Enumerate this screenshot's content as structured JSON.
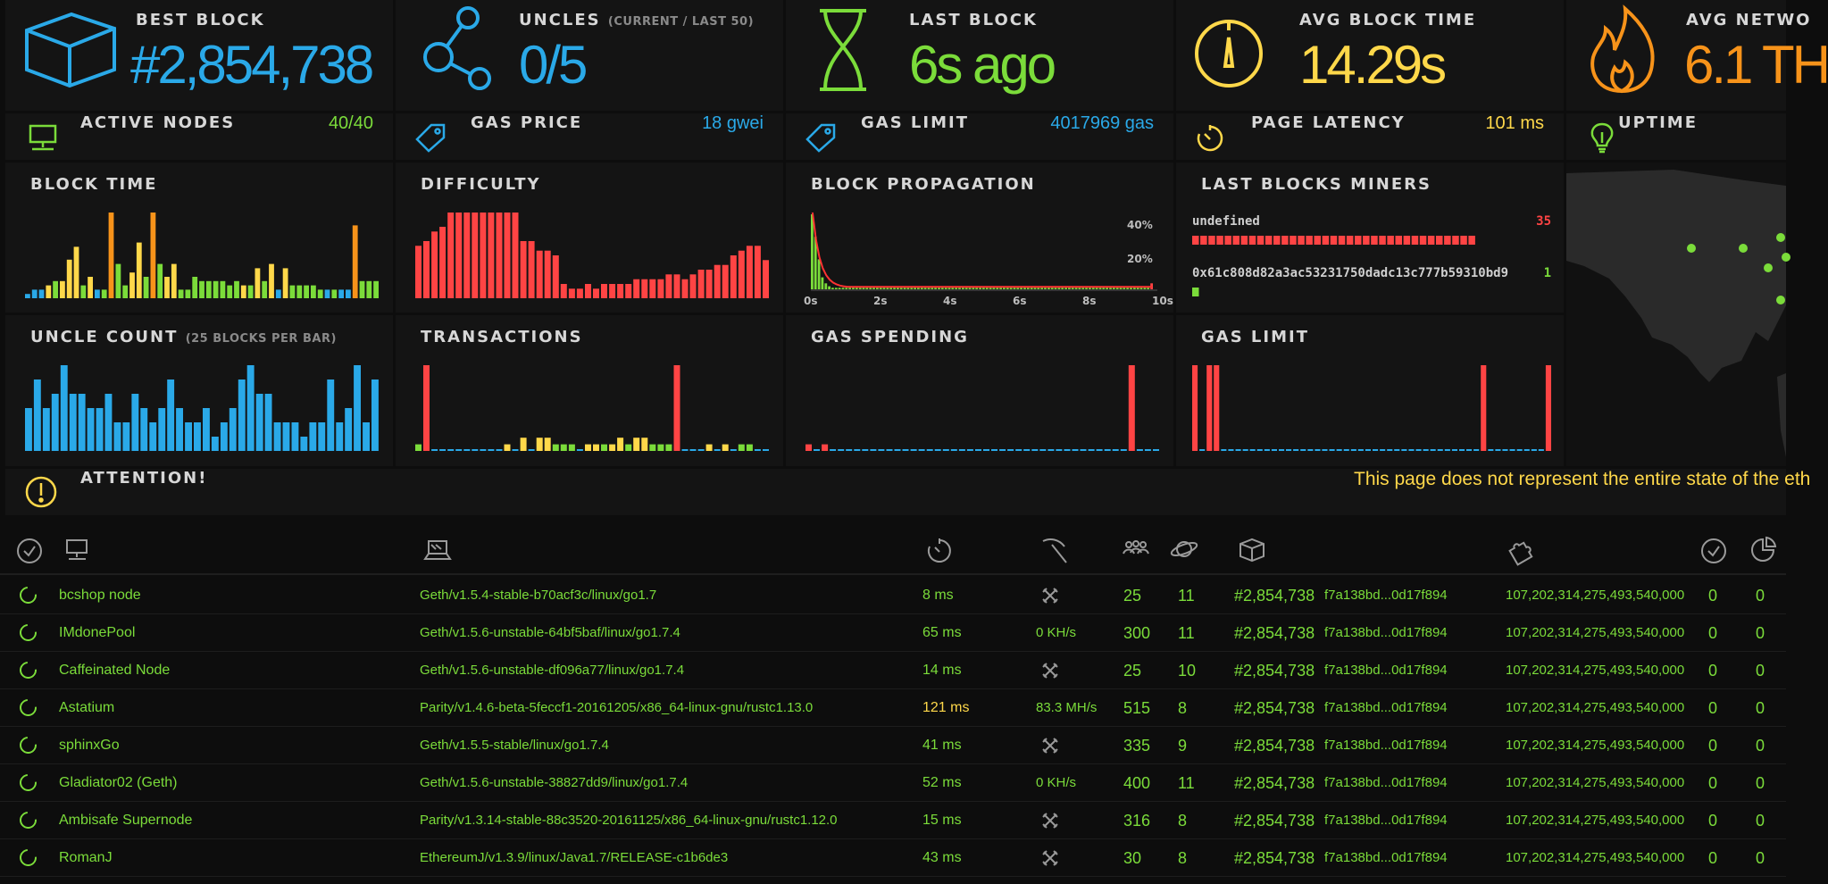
{
  "stats": {
    "best_block": {
      "label": "BEST BLOCK",
      "value": "#2,854,738",
      "icon": "cube-icon",
      "color": "#2aa9e8"
    },
    "uncles": {
      "label": "UNCLES",
      "sublabel": "(CURRENT / LAST 50)",
      "value": "0/5",
      "icon": "uncles-icon",
      "color": "#2aa9e8"
    },
    "last_block": {
      "label": "LAST BLOCK",
      "value": "6s ago",
      "icon": "hourglass-icon",
      "color": "#7bdc3a"
    },
    "avg_block_time": {
      "label": "AVG BLOCK TIME",
      "value": "14.29s",
      "icon": "gauge-icon",
      "color": "#ffd84a"
    },
    "avg_network": {
      "label": "AVG NETWO",
      "value": "6.1 TH",
      "icon": "flame-icon",
      "color": "#f7931a"
    }
  },
  "substats": {
    "active_nodes": {
      "label": "ACTIVE NODES",
      "value": "40/40",
      "icon": "monitor-icon"
    },
    "gas_price": {
      "label": "GAS PRICE",
      "value": "18 gwei",
      "icon": "tag-icon"
    },
    "gas_limit": {
      "label": "GAS LIMIT",
      "value": "4017969 gas",
      "icon": "tag-icon"
    },
    "page_latency": {
      "label": "PAGE LATENCY",
      "value": "101 ms",
      "icon": "timer-icon"
    },
    "uptime": {
      "label": "UPTIME",
      "icon": "bulb-icon"
    }
  },
  "charts": {
    "block_time": {
      "title": "BLOCK TIME",
      "values": [
        1,
        2,
        2,
        3,
        4,
        4,
        9,
        12,
        3,
        5,
        2,
        2,
        20,
        8,
        3,
        6,
        13,
        5,
        20,
        8,
        5,
        8,
        2,
        2,
        5,
        4,
        4,
        4,
        4,
        3,
        4,
        3,
        3,
        7,
        4,
        8,
        2,
        7,
        3,
        3,
        3,
        3,
        2,
        2,
        2,
        2,
        2,
        17,
        4,
        4,
        4
      ],
      "colors": [
        "#2aa9e8",
        "#2aa9e8",
        "#2aa9e8",
        "#ffd84a",
        "#7bdc3a",
        "#ffd84a",
        "#ffd84a",
        "#ffd84a",
        "#7bdc3a",
        "#ffd84a",
        "#2aa9e8",
        "#7bdc3a",
        "#f7931a",
        "#7bdc3a",
        "#7bdc3a",
        "#ffd84a",
        "#ffd84a",
        "#7bdc3a",
        "#f7931a",
        "#7bdc3a",
        "#ffd84a",
        "#ffd84a",
        "#7bdc3a",
        "#7bdc3a",
        "#7bdc3a",
        "#7bdc3a",
        "#7bdc3a",
        "#7bdc3a",
        "#7bdc3a",
        "#7bdc3a",
        "#7bdc3a",
        "#ffd84a",
        "#7bdc3a",
        "#ffd84a",
        "#7bdc3a",
        "#ffd84a",
        "#2aa9e8",
        "#ffd84a",
        "#7bdc3a",
        "#7bdc3a",
        "#7bdc3a",
        "#7bdc3a",
        "#7bdc3a",
        "#2aa9e8",
        "#7bdc3a",
        "#2aa9e8",
        "#2aa9e8",
        "#f7931a",
        "#7bdc3a",
        "#7bdc3a",
        "#7bdc3a"
      ]
    },
    "difficulty": {
      "title": "DIFFICULTY",
      "values": [
        11,
        12,
        14,
        15,
        18,
        18,
        18,
        18,
        18,
        18,
        18,
        18,
        18,
        12,
        12,
        10,
        10,
        9,
        3,
        2,
        2,
        3,
        2,
        3,
        3,
        3,
        3,
        4,
        4,
        4,
        4,
        5,
        5,
        4,
        5,
        6,
        6,
        7,
        7,
        9,
        10,
        11,
        11,
        8
      ]
    },
    "block_propagation": {
      "title": "BLOCK PROPAGATION",
      "y_ticks": [
        "40%",
        "20%"
      ],
      "x_ticks": [
        "0s",
        "2s",
        "4s",
        "6s",
        "8s",
        "10s"
      ],
      "bars": [
        50,
        35,
        20,
        8,
        4,
        2,
        1,
        1,
        1,
        1,
        1,
        1,
        1,
        1,
        1,
        1,
        1,
        1,
        1,
        1,
        1,
        1,
        1,
        1,
        1,
        1,
        1,
        1,
        1,
        1,
        1,
        1,
        1,
        1,
        1,
        1,
        1,
        1,
        1,
        1,
        1,
        1,
        1,
        1,
        1,
        1,
        1,
        1,
        1,
        1,
        1,
        1,
        1,
        1,
        1,
        1,
        1,
        1,
        1,
        1,
        1,
        1,
        1,
        1,
        1,
        1,
        1,
        1,
        1,
        1,
        1,
        1,
        1,
        1,
        1,
        1,
        1,
        1,
        1,
        1,
        1,
        1,
        1,
        1,
        1,
        1,
        1,
        1,
        1,
        1,
        1,
        1,
        1,
        1,
        1,
        1,
        1,
        1,
        1,
        4
      ]
    },
    "last_blocks_miners": {
      "title": "LAST BLOCKS MINERS",
      "miners": [
        {
          "name": "undefined",
          "count": "35",
          "color": "#ff4444"
        },
        {
          "name": "0x61c808d82a3ac53231750dadc13c777b59310bd9",
          "count": "1",
          "color": "#7bdc3a"
        }
      ]
    },
    "uncle_count": {
      "title": "UNCLE COUNT",
      "sublabel": "(25 BLOCKS PER BAR)",
      "values": [
        3,
        5,
        3,
        4,
        6,
        4,
        4,
        3,
        3,
        4,
        2,
        2,
        4,
        3,
        2,
        3,
        5,
        3,
        2,
        2,
        3,
        1,
        2,
        3,
        5,
        6,
        4,
        4,
        2,
        2,
        2,
        1,
        2,
        2,
        5,
        2,
        3,
        6,
        2,
        5
      ]
    },
    "transactions": {
      "title": "TRANSACTIONS",
      "values": [
        1,
        13,
        0,
        0,
        0,
        0,
        0,
        0,
        0,
        0,
        0,
        1,
        0,
        2,
        0,
        2,
        2,
        1,
        1,
        1,
        0,
        1,
        1,
        1,
        1,
        2,
        1,
        2,
        2,
        1,
        1,
        1,
        13,
        0,
        0,
        0,
        1,
        0,
        1,
        0,
        1,
        1,
        0,
        0
      ],
      "colors": [
        "#7bdc3a",
        "#ff4444",
        "#2aa9e8",
        "#2aa9e8",
        "#2aa9e8",
        "#2aa9e8",
        "#2aa9e8",
        "#2aa9e8",
        "#2aa9e8",
        "#2aa9e8",
        "#2aa9e8",
        "#ffd84a",
        "#2aa9e8",
        "#ffd84a",
        "#2aa9e8",
        "#ffd84a",
        "#ffd84a",
        "#7bdc3a",
        "#7bdc3a",
        "#7bdc3a",
        "#2aa9e8",
        "#ffd84a",
        "#ffd84a",
        "#7bdc3a",
        "#ffd84a",
        "#ffd84a",
        "#7bdc3a",
        "#ffd84a",
        "#ffd84a",
        "#7bdc3a",
        "#7bdc3a",
        "#7bdc3a",
        "#ff4444",
        "#2aa9e8",
        "#2aa9e8",
        "#2aa9e8",
        "#ffd84a",
        "#2aa9e8",
        "#ffd84a",
        "#2aa9e8",
        "#7bdc3a",
        "#7bdc3a",
        "#2aa9e8",
        "#2aa9e8"
      ]
    },
    "gas_spending": {
      "title": "GAS SPENDING",
      "values": [
        1,
        0,
        1,
        0,
        0,
        0,
        0,
        0,
        0,
        0,
        0,
        0,
        0,
        0,
        0,
        0,
        0,
        0,
        0,
        0,
        0,
        0,
        0,
        0,
        0,
        0,
        0,
        0,
        0,
        0,
        0,
        0,
        0,
        0,
        0,
        0,
        0,
        0,
        0,
        0,
        13,
        0,
        0,
        0
      ]
    },
    "gas_limit_chart": {
      "title": "GAS LIMIT",
      "values": [
        13,
        0,
        13,
        13,
        0,
        0,
        0,
        0,
        0,
        0,
        0,
        0,
        0,
        0,
        0,
        0,
        0,
        0,
        0,
        0,
        0,
        0,
        0,
        0,
        0,
        0,
        0,
        0,
        0,
        0,
        0,
        0,
        0,
        0,
        0,
        0,
        0,
        0,
        0,
        0,
        13,
        0,
        0,
        0,
        0,
        0,
        0,
        0,
        0,
        13
      ]
    }
  },
  "attention": {
    "label": "ATTENTION!",
    "message": "This page does not represent the entire state of the eth",
    "icon": "alert-icon"
  },
  "table": {
    "header_icons": [
      "check-circle-icon",
      "monitor-icon",
      "laptop-icon",
      "timer-icon",
      "pickaxe-icon",
      "group-icon",
      "planet-icon",
      "cube-icon",
      "puzzle-icon",
      "check-circle-icon",
      "pie-icon"
    ],
    "rows": [
      {
        "name": "bcshop node",
        "type": "Geth/v1.5.4-stable-b70acf3c/linux/go1.7",
        "latency": "8 ms",
        "hashrate": "",
        "peers": "25",
        "pending": "11",
        "block": "#2,854,738",
        "hash": "f7a138bd...0d17f894",
        "difficulty": "107,202,314,275,493,540,000",
        "u1": "0",
        "u2": "0"
      },
      {
        "name": "IMdonePool",
        "type": "Geth/v1.5.6-unstable-64bf5baf/linux/go1.7.4",
        "latency": "65 ms",
        "hashrate": "0 KH/s",
        "peers": "300",
        "pending": "11",
        "block": "#2,854,738",
        "hash": "f7a138bd...0d17f894",
        "difficulty": "107,202,314,275,493,540,000",
        "u1": "0",
        "u2": "0"
      },
      {
        "name": "Caffeinated Node",
        "type": "Geth/v1.5.6-unstable-df096a77/linux/go1.7.4",
        "latency": "14 ms",
        "hashrate": "",
        "peers": "25",
        "pending": "10",
        "block": "#2,854,738",
        "hash": "f7a138bd...0d17f894",
        "difficulty": "107,202,314,275,493,540,000",
        "u1": "0",
        "u2": "0"
      },
      {
        "name": "Astatium",
        "type": "Parity/v1.4.6-beta-5feccf1-20161205/x86_64-linux-gnu/rustc1.13.0",
        "latency": "121 ms",
        "hashrate": "83.3 MH/s",
        "peers": "515",
        "pending": "8",
        "block": "#2,854,738",
        "hash": "f7a138bd...0d17f894",
        "difficulty": "107,202,314,275,493,540,000",
        "u1": "0",
        "u2": "0"
      },
      {
        "name": "sphinxGo",
        "type": "Geth/v1.5.5-stable/linux/go1.7.4",
        "latency": "41 ms",
        "hashrate": "",
        "peers": "335",
        "pending": "9",
        "block": "#2,854,738",
        "hash": "f7a138bd...0d17f894",
        "difficulty": "107,202,314,275,493,540,000",
        "u1": "0",
        "u2": "0"
      },
      {
        "name": "Gladiator02 (Geth)",
        "type": "Geth/v1.5.6-unstable-38827dd9/linux/go1.7.4",
        "latency": "52 ms",
        "hashrate": "0 KH/s",
        "peers": "400",
        "pending": "11",
        "block": "#2,854,738",
        "hash": "f7a138bd...0d17f894",
        "difficulty": "107,202,314,275,493,540,000",
        "u1": "0",
        "u2": "0"
      },
      {
        "name": "Ambisafe Supernode",
        "type": "Parity/v1.3.14-stable-88c3520-20161125/x86_64-linux-gnu/rustc1.12.0",
        "latency": "15 ms",
        "hashrate": "",
        "peers": "316",
        "pending": "8",
        "block": "#2,854,738",
        "hash": "f7a138bd...0d17f894",
        "difficulty": "107,202,314,275,493,540,000",
        "u1": "0",
        "u2": "0"
      },
      {
        "name": "RomanJ",
        "type": "EthereumJ/v1.3.9/linux/Java1.7/RELEASE-c1b6de3",
        "latency": "43 ms",
        "hashrate": "",
        "peers": "30",
        "pending": "8",
        "block": "#2,854,738",
        "hash": "f7a138bd...0d17f894",
        "difficulty": "107,202,314,275,493,540,000",
        "u1": "0",
        "u2": "0"
      }
    ]
  }
}
